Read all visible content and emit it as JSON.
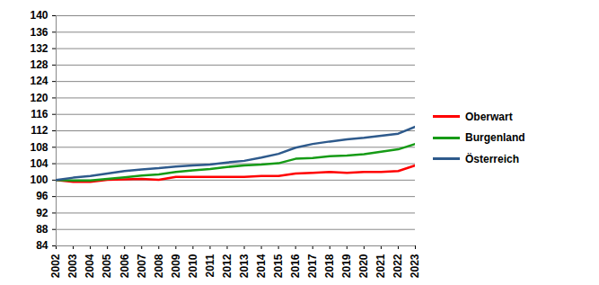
{
  "chart_data": {
    "type": "line",
    "x": [
      2002,
      2003,
      2004,
      2005,
      2006,
      2007,
      2008,
      2009,
      2010,
      2011,
      2012,
      2013,
      2014,
      2015,
      2016,
      2017,
      2018,
      2019,
      2020,
      2021,
      2022,
      2023
    ],
    "series": [
      {
        "name": "Oberwart",
        "color": "#ff0000",
        "values": [
          100,
          99.6,
          99.6,
          100.1,
          100.2,
          100.3,
          100.1,
          100.8,
          100.8,
          100.8,
          100.8,
          100.8,
          101.0,
          101.0,
          101.6,
          101.8,
          102.0,
          101.8,
          102.0,
          102.0,
          102.2,
          103.6
        ]
      },
      {
        "name": "Burgenland",
        "color": "#169b16",
        "values": [
          100,
          99.9,
          99.9,
          100.3,
          100.7,
          101.1,
          101.4,
          102.0,
          102.4,
          102.7,
          103.2,
          103.6,
          103.8,
          104.1,
          105.2,
          105.4,
          105.8,
          106.0,
          106.3,
          106.9,
          107.5,
          108.8
        ]
      },
      {
        "name": "Österreich",
        "color": "#2e5a8c",
        "values": [
          100,
          100.6,
          101.0,
          101.6,
          102.2,
          102.6,
          102.9,
          103.3,
          103.6,
          103.8,
          104.3,
          104.7,
          105.5,
          106.4,
          107.9,
          108.8,
          109.4,
          109.9,
          110.3,
          110.8,
          111.3,
          113.0
        ]
      }
    ],
    "xlim": [
      2002,
      2023
    ],
    "xticks": [
      2002,
      2003,
      2004,
      2005,
      2006,
      2007,
      2008,
      2009,
      2010,
      2011,
      2012,
      2013,
      2014,
      2015,
      2016,
      2017,
      2018,
      2019,
      2020,
      2021,
      2022,
      2023
    ],
    "ylim": [
      84,
      140
    ],
    "yticks": [
      84,
      88,
      92,
      96,
      100,
      104,
      108,
      112,
      116,
      120,
      124,
      128,
      132,
      136,
      140
    ],
    "grid": true,
    "legend": "right"
  }
}
